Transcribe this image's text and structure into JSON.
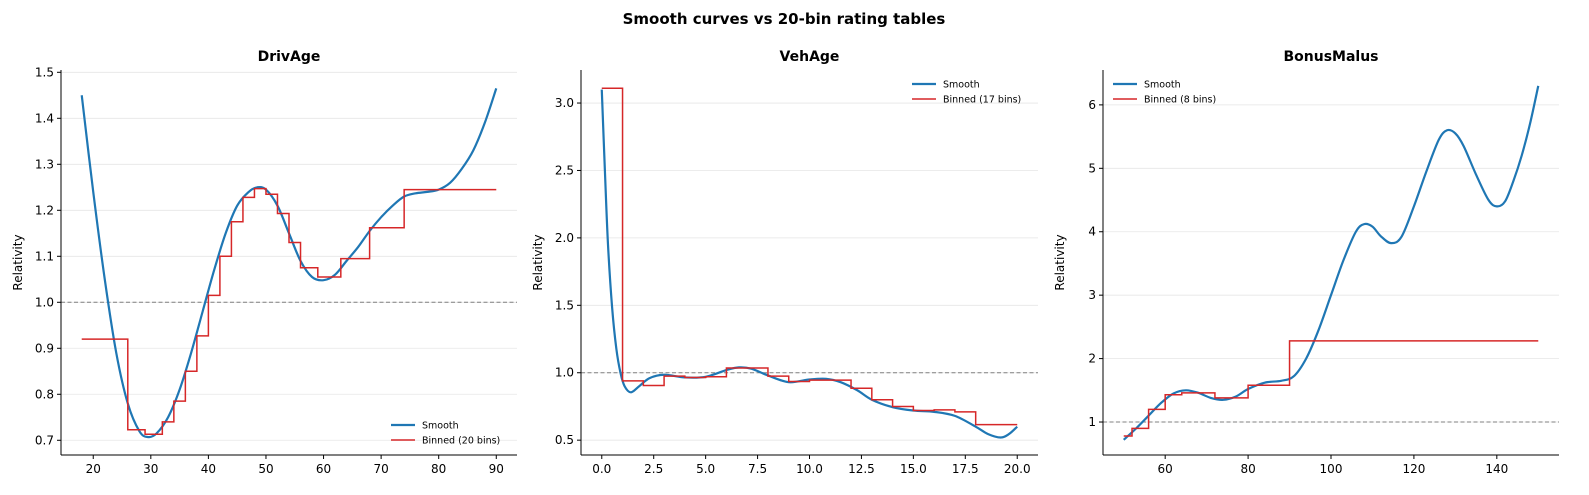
{
  "figure": {
    "title": "Smooth curves vs 20-bin rating tables"
  },
  "colors": {
    "smooth": "#1f77b4",
    "binned": "#d62728",
    "reference": "#808080",
    "grid": "#e6e6e6"
  },
  "chart_data": [
    {
      "type": "line",
      "title": "DrivAge",
      "xlabel": "",
      "ylabel": "Relativity",
      "xlim": [
        14.4,
        93.6
      ],
      "ylim": [
        0.668,
        1.505
      ],
      "xticks": [
        20,
        30,
        40,
        50,
        60,
        70,
        80,
        90
      ],
      "yticks": [
        0.7,
        0.8,
        0.9,
        1.0,
        1.1,
        1.2,
        1.3,
        1.4,
        1.5
      ],
      "ytick_decimals": 1,
      "xtick_decimals": 0,
      "reference_line": 1.0,
      "grid": "y",
      "legend": {
        "placement": "lower-right",
        "entries": [
          "Smooth",
          "Binned (20 bins)"
        ]
      },
      "series": [
        {
          "name": "Smooth",
          "kind": "curve",
          "x": [
            18,
            20,
            22,
            24,
            26,
            28,
            29.5,
            31,
            33,
            35,
            37,
            39,
            41,
            43,
            45,
            47,
            48.5,
            50,
            52,
            54,
            56,
            58,
            60,
            62,
            64,
            66,
            68,
            70,
            72,
            74,
            76,
            78,
            80,
            82,
            84,
            86,
            88,
            90
          ],
          "y": [
            1.45,
            1.24,
            1.05,
            0.89,
            0.78,
            0.72,
            0.707,
            0.715,
            0.75,
            0.81,
            0.89,
            0.98,
            1.07,
            1.15,
            1.21,
            1.24,
            1.25,
            1.245,
            1.21,
            1.15,
            1.09,
            1.055,
            1.048,
            1.06,
            1.09,
            1.12,
            1.155,
            1.185,
            1.21,
            1.23,
            1.237,
            1.24,
            1.245,
            1.26,
            1.29,
            1.33,
            1.39,
            1.465
          ]
        },
        {
          "name": "Binned (20 bins)",
          "kind": "step",
          "edges": [
            18,
            26,
            29,
            32,
            34,
            36,
            38,
            40,
            42,
            44,
            46,
            48,
            50,
            52,
            54,
            56,
            59,
            63,
            68,
            74,
            90
          ],
          "values": [
            0.92,
            0.723,
            0.713,
            0.74,
            0.785,
            0.85,
            0.927,
            1.015,
            1.1,
            1.175,
            1.228,
            1.247,
            1.235,
            1.193,
            1.13,
            1.075,
            1.055,
            1.095,
            1.162,
            1.245
          ]
        }
      ]
    },
    {
      "type": "line",
      "title": "VehAge",
      "xlabel": "",
      "ylabel": "Relativity",
      "xlim": [
        -1.0,
        21.0
      ],
      "ylim": [
        0.39,
        3.245
      ],
      "xticks": [
        0.0,
        2.5,
        5.0,
        7.5,
        10.0,
        12.5,
        15.0,
        17.5,
        20.0
      ],
      "yticks": [
        0.5,
        1.0,
        1.5,
        2.0,
        2.5,
        3.0
      ],
      "ytick_decimals": 1,
      "xtick_decimals": 1,
      "reference_line": 1.0,
      "grid": "y",
      "legend": {
        "placement": "top-right",
        "entries": [
          "Smooth",
          "Binned (17 bins)"
        ]
      },
      "series": [
        {
          "name": "Smooth",
          "kind": "curve",
          "x": [
            0,
            0.15,
            0.3,
            0.5,
            0.7,
            0.9,
            1.1,
            1.4,
            1.8,
            2.3,
            3,
            4,
            5,
            6,
            6.6,
            7.2,
            8,
            9,
            10,
            10.8,
            11.5,
            12.3,
            13,
            14,
            15,
            16,
            17,
            18,
            18.6,
            19.2,
            19.6,
            20
          ],
          "y": [
            3.1,
            2.5,
            1.95,
            1.48,
            1.18,
            1.0,
            0.9,
            0.855,
            0.9,
            0.96,
            0.985,
            0.965,
            0.97,
            1.02,
            1.04,
            1.03,
            0.98,
            0.93,
            0.95,
            0.955,
            0.93,
            0.87,
            0.8,
            0.745,
            0.72,
            0.71,
            0.68,
            0.6,
            0.545,
            0.52,
            0.545,
            0.6
          ]
        },
        {
          "name": "Binned (17 bins)",
          "kind": "step",
          "edges": [
            0,
            1,
            2,
            3,
            4,
            5,
            6,
            8,
            9,
            10,
            12,
            13,
            14,
            15,
            16,
            17,
            18,
            20
          ],
          "values": [
            3.11,
            0.94,
            0.905,
            0.975,
            0.965,
            0.97,
            1.035,
            0.975,
            0.935,
            0.945,
            0.885,
            0.8,
            0.75,
            0.72,
            0.725,
            0.71,
            0.615
          ]
        }
      ]
    },
    {
      "type": "line",
      "title": "BonusMalus",
      "xlabel": "",
      "ylabel": "Relativity",
      "xlim": [
        45.0,
        155.0
      ],
      "ylim": [
        0.48,
        6.55
      ],
      "xticks": [
        60,
        80,
        100,
        120,
        140
      ],
      "yticks": [
        1,
        2,
        3,
        4,
        5,
        6
      ],
      "ytick_decimals": 0,
      "xtick_decimals": 0,
      "reference_line": 1.0,
      "grid": "y",
      "legend": {
        "placement": "top-left",
        "entries": [
          "Smooth",
          "Binned (8 bins)"
        ]
      },
      "series": [
        {
          "name": "Smooth",
          "kind": "curve",
          "x": [
            50,
            53,
            56,
            59,
            62,
            65,
            68,
            71,
            74,
            77,
            80,
            84,
            88,
            91,
            94,
            97,
            100,
            103,
            106,
            108,
            110,
            112,
            114.5,
            117,
            120,
            123,
            126,
            128,
            130,
            132,
            135,
            138,
            140,
            142,
            144,
            146,
            148,
            150
          ],
          "y": [
            0.72,
            0.9,
            1.1,
            1.3,
            1.45,
            1.5,
            1.46,
            1.38,
            1.35,
            1.4,
            1.52,
            1.62,
            1.65,
            1.72,
            2.0,
            2.45,
            3.0,
            3.55,
            4.0,
            4.12,
            4.08,
            3.93,
            3.82,
            3.92,
            4.4,
            4.95,
            5.45,
            5.6,
            5.55,
            5.35,
            4.9,
            4.5,
            4.4,
            4.48,
            4.8,
            5.2,
            5.7,
            6.3
          ]
        },
        {
          "name": "Binned (8 bins)",
          "kind": "step",
          "edges": [
            50,
            52,
            56,
            60,
            64,
            72,
            80,
            90,
            150
          ],
          "values": [
            0.78,
            0.9,
            1.2,
            1.43,
            1.46,
            1.38,
            1.58,
            2.28
          ]
        }
      ]
    }
  ]
}
